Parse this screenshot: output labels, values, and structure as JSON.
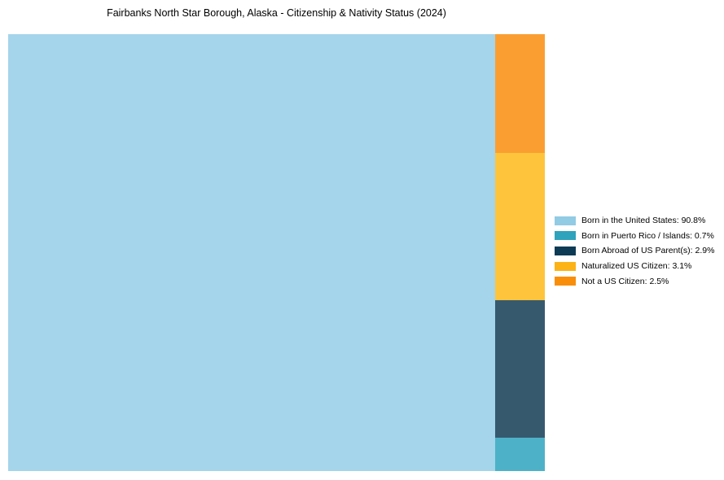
{
  "chart_data": {
    "type": "treemap",
    "title": "Fairbanks North Star Borough, Alaska - Citizenship & Nativity Status (2024)",
    "background": "#ffffff",
    "legend_position": "right",
    "main_block": "born-in-us",
    "stack_order": [
      "not-us-citizen",
      "naturalized",
      "born-abroad",
      "puerto-rico"
    ],
    "series": [
      {
        "slug": "born-in-us",
        "name": "Born in the United States",
        "value": 90.8,
        "label": "Born in the United States: 90.8%",
        "block_color": "#a5d5eb",
        "legend_color": "#92cbe4"
      },
      {
        "slug": "puerto-rico",
        "name": "Born in Puerto Rico / Islands",
        "value": 0.7,
        "label": "Born in Puerto Rico / Islands: 0.7%",
        "block_color": "#4db2c8",
        "legend_color": "#2fa3bc"
      },
      {
        "slug": "born-abroad",
        "name": "Born Abroad of US Parent(s)",
        "value": 2.9,
        "label": "Born Abroad of US Parent(s): 2.9%",
        "block_color": "#36596e",
        "legend_color": "#0d3b55"
      },
      {
        "slug": "naturalized",
        "name": "Naturalized US Citizen",
        "value": 3.1,
        "label": "Naturalized US Citizen: 3.1%",
        "block_color": "#fec43b",
        "legend_color": "#fcb316"
      },
      {
        "slug": "not-us-citizen",
        "name": "Not a US Citizen",
        "value": 2.5,
        "label": "Not a US Citizen: 2.5%",
        "block_color": "#fb9e32",
        "legend_color": "#f98e0b"
      }
    ]
  }
}
